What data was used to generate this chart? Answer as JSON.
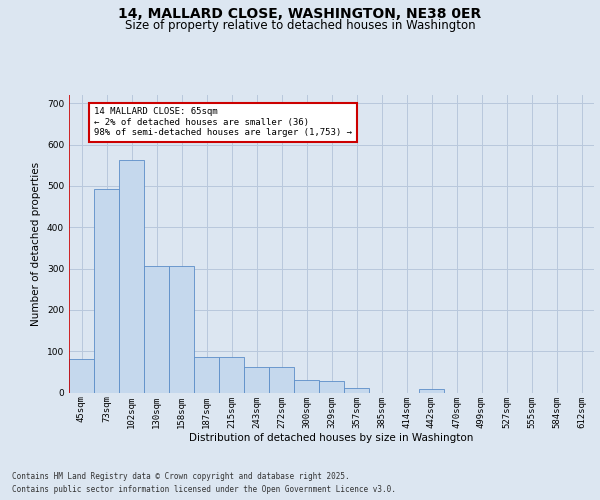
{
  "title_line1": "14, MALLARD CLOSE, WASHINGTON, NE38 0ER",
  "title_line2": "Size of property relative to detached houses in Washington",
  "xlabel": "Distribution of detached houses by size in Washington",
  "ylabel": "Number of detached properties",
  "categories": [
    "45sqm",
    "73sqm",
    "102sqm",
    "130sqm",
    "158sqm",
    "187sqm",
    "215sqm",
    "243sqm",
    "272sqm",
    "300sqm",
    "329sqm",
    "357sqm",
    "385sqm",
    "414sqm",
    "442sqm",
    "470sqm",
    "499sqm",
    "527sqm",
    "555sqm",
    "584sqm",
    "612sqm"
  ],
  "values": [
    82,
    492,
    562,
    307,
    307,
    85,
    85,
    62,
    62,
    30,
    27,
    10,
    0,
    0,
    8,
    0,
    0,
    0,
    0,
    0,
    0
  ],
  "bar_color": "#c5d8ed",
  "bar_edge_color": "#5b8dc8",
  "grid_color": "#b8c8dc",
  "background_color": "#dce6f1",
  "plot_bg_color": "#dce6f1",
  "annotation_text": "14 MALLARD CLOSE: 65sqm\n← 2% of detached houses are smaller (36)\n98% of semi-detached houses are larger (1,753) →",
  "annotation_box_color": "#ffffff",
  "annotation_box_edge": "#cc0000",
  "vline_color": "#cc0000",
  "ylim": [
    0,
    720
  ],
  "yticks": [
    0,
    100,
    200,
    300,
    400,
    500,
    600,
    700
  ],
  "footer_line1": "Contains HM Land Registry data © Crown copyright and database right 2025.",
  "footer_line2": "Contains public sector information licensed under the Open Government Licence v3.0.",
  "title_fontsize": 10,
  "subtitle_fontsize": 8.5,
  "axis_label_fontsize": 7.5,
  "tick_fontsize": 6.5,
  "annotation_fontsize": 6.5,
  "footer_fontsize": 5.5
}
